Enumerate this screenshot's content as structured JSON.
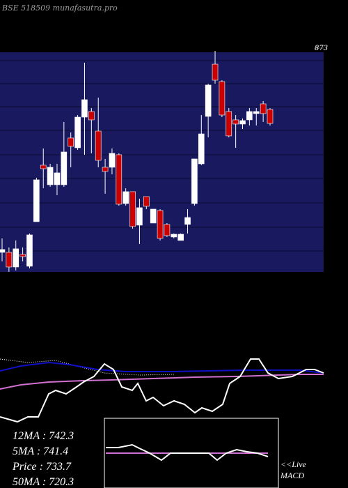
{
  "chart_data": [
    {
      "type": "candlestick",
      "title": "BSE 518509 munafasutra.pro",
      "ylim": [
        464,
        873
      ],
      "yticks": [
        873
      ],
      "up_color": "#ffffff",
      "down_color": "#cc0000",
      "open": [
        499.5,
        499.5,
        472.9,
        495.7,
        474.2,
        555.2,
        657.8,
        622.3,
        622.3,
        622.3,
        707.2,
        689.4,
        745.1,
        755.3,
        719.8,
        654.0,
        654.0,
        676.8,
        588.1,
        609.7,
        548.9,
        600.8,
        552.7,
        575.5,
        550.2,
        527.4,
        521.1,
        550.2,
        588.1,
        660.3,
        746.4,
        841.3,
        809.7,
        755.3,
        740.1,
        732.5,
        740.1,
        751.5,
        769.2,
        759.1
      ],
      "high": [
        524.8,
        508.4,
        521.1,
        508.4,
        533.7,
        635.0,
        688.2,
        660.3,
        660.3,
        736.3,
        717.3,
        748.9,
        843.9,
        761.6,
        780.6,
        669.2,
        688.2,
        679.3,
        616.0,
        609.7,
        597.0,
        600.8,
        578.0,
        578.0,
        552.7,
        533.7,
        533.7,
        578.0,
        669.2,
        748.9,
        805.9,
        865.4,
        812.2,
        761.6,
        748.9,
        742.6,
        761.6,
        761.6,
        774.3,
        761.6
      ],
      "low": [
        483.1,
        464.1,
        466.6,
        483.1,
        470.4,
        555.2,
        616.0,
        618.5,
        603.3,
        618.5,
        654.0,
        685.6,
        676.8,
        679.3,
        654.0,
        605.9,
        641.3,
        584.4,
        584.4,
        542.6,
        514.7,
        578.0,
        552.7,
        521.1,
        527.4,
        524.8,
        521.1,
        533.7,
        584.4,
        657.8,
        708.4,
        805.9,
        745.1,
        708.4,
        689.4,
        723.6,
        729.9,
        729.9,
        736.3,
        729.9
      ],
      "close": [
        504.6,
        472.9,
        505.9,
        491.9,
        531.2,
        631.2,
        651.4,
        654.0,
        643.9,
        681.8,
        692.0,
        745.1,
        776.8,
        740.1,
        666.6,
        646.4,
        679.3,
        586.9,
        609.7,
        546.4,
        580.6,
        583.1,
        578.0,
        524.8,
        529.9,
        532.4,
        532.4,
        562.8,
        669.2,
        714.7,
        803.4,
        812.2,
        748.9,
        711.0,
        732.5,
        738.8,
        755.3,
        755.3,
        751.5,
        733.7
      ]
    },
    {
      "type": "line",
      "xlim": [
        0,
        465
      ],
      "ylim": [
        0,
        100
      ],
      "legend": [
        "12MA : 742.3",
        "5MA : 741.4",
        "Price   : 733.7",
        "50MA : 720.3"
      ],
      "series": [
        {
          "color": "#ffffff",
          "dash": true,
          "x": [
            0,
            40,
            80,
            110,
            150,
            200,
            250
          ],
          "values": [
            90,
            85,
            88,
            80,
            70,
            67,
            68
          ]
        },
        {
          "color": "#1010c8",
          "x": [
            0,
            30,
            70,
            100,
            140,
            180,
            250,
            300,
            350,
            400,
            430,
            465
          ],
          "values": [
            73,
            80,
            85,
            82,
            75,
            72,
            72,
            73,
            74,
            74,
            74,
            70
          ]
        },
        {
          "color": "#d070d0",
          "x": [
            0,
            30,
            70,
            120,
            160,
            220,
            280,
            340,
            400,
            430,
            465
          ],
          "values": [
            47,
            53,
            57,
            59,
            60,
            62,
            64,
            65,
            67,
            68,
            68
          ]
        },
        {
          "color": "#ffffff",
          "x": [
            0,
            25,
            40,
            55,
            70,
            80,
            95,
            110,
            120,
            135,
            150,
            163,
            175,
            190,
            198,
            210,
            220,
            235,
            250,
            265,
            280,
            290,
            305,
            320,
            330,
            345,
            360,
            372,
            385,
            400,
            420,
            440,
            452,
            465
          ],
          "values": [
            7,
            0,
            7,
            7,
            40,
            45,
            40,
            50,
            57,
            65,
            83,
            75,
            50,
            45,
            55,
            30,
            35,
            23,
            30,
            25,
            13,
            20,
            15,
            25,
            55,
            65,
            90,
            90,
            70,
            62,
            65,
            75,
            75,
            70
          ]
        }
      ]
    },
    {
      "type": "line",
      "title": "MACD",
      "annotation": "<<Live",
      "xlim": [
        0,
        465
      ],
      "ylim": [
        -50,
        50
      ],
      "series": [
        {
          "color": "#d070d0",
          "x": [
            152,
            385
          ],
          "values": [
            0,
            0
          ]
        },
        {
          "color": "#ffffff",
          "x": [
            152,
            170,
            190,
            200,
            215,
            232,
            245,
            260,
            300,
            312,
            325,
            340,
            355,
            370,
            385
          ],
          "values": [
            8,
            8,
            12,
            7,
            0,
            -10,
            0,
            0,
            0,
            -10,
            0,
            5,
            2,
            0,
            -5
          ]
        }
      ]
    }
  ]
}
